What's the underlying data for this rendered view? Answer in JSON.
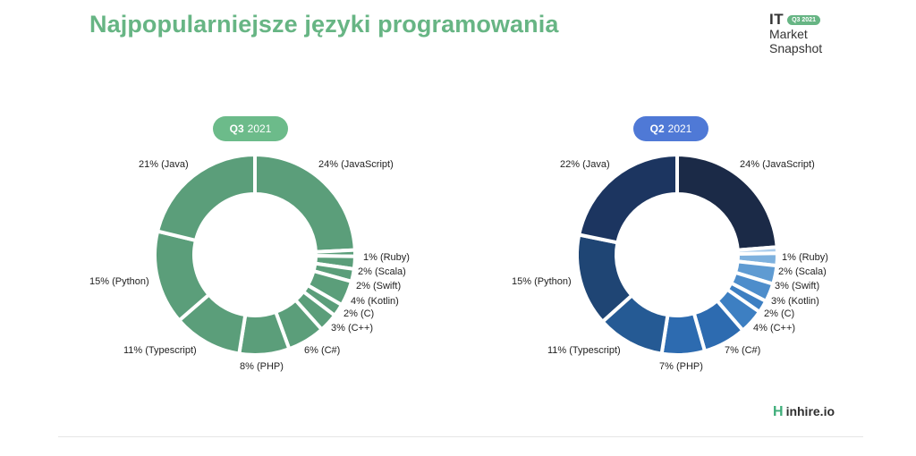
{
  "header": {
    "title": "Najpopularniejsze języki programowania",
    "brand_it": "IT",
    "brand_badge": "Q3 2021",
    "brand_line1": "Market",
    "brand_line2": "Snapshot"
  },
  "footer": {
    "logo_text": "inhire.io",
    "logo_mark": "H"
  },
  "colors": {
    "green": "#5b9e7a",
    "pill_green": "#6cbb8a",
    "pill_blue": "#4f79d6",
    "blue_shades": [
      "#1b2a47",
      "#1c3560",
      "#1f4574",
      "#255a94",
      "#2d6bb0",
      "#3d7fc2",
      "#4d8dcb",
      "#5f9bd2",
      "#7eb1de",
      "#a9ccec"
    ]
  },
  "chart_data": [
    {
      "type": "pie",
      "style": "donut",
      "period": "Q3",
      "year": "2021",
      "categories": [
        "JavaScript",
        "Ruby",
        "Scala",
        "Swift",
        "Kotlin",
        "C",
        "C++",
        "C#",
        "PHP",
        "Typescript",
        "Python",
        "Java"
      ],
      "values": [
        24,
        1,
        2,
        2,
        4,
        2,
        3,
        6,
        8,
        11,
        15,
        21
      ],
      "labels": [
        "24% (JavaScript)",
        "1% (Ruby)",
        "2% (Scala)",
        "2% (Swift)",
        "4% (Kotlin)",
        "2% (C)",
        "3% (C++)",
        "6% (C#)",
        "8% (PHP)",
        "11% (Typescript)",
        "15% (Python)",
        "21% (Java)"
      ]
    },
    {
      "type": "pie",
      "style": "donut",
      "period": "Q2",
      "year": "2021",
      "categories": [
        "JavaScript",
        "Ruby",
        "Scala",
        "Swift",
        "Kotlin",
        "C",
        "C++",
        "C#",
        "PHP",
        "Typescript",
        "Python",
        "Java"
      ],
      "values": [
        24,
        1,
        2,
        3,
        3,
        2,
        4,
        7,
        7,
        11,
        15,
        22
      ],
      "labels": [
        "24% (JavaScript)",
        "1% (Ruby)",
        "2% (Scala)",
        "3% (Swift)",
        "3% (Kotlin)",
        "2% (C)",
        "4% (C++)",
        "7% (C#)",
        "7% (PHP)",
        "11% (Typescript)",
        "15% (Python)",
        "22% (Java)"
      ]
    }
  ]
}
